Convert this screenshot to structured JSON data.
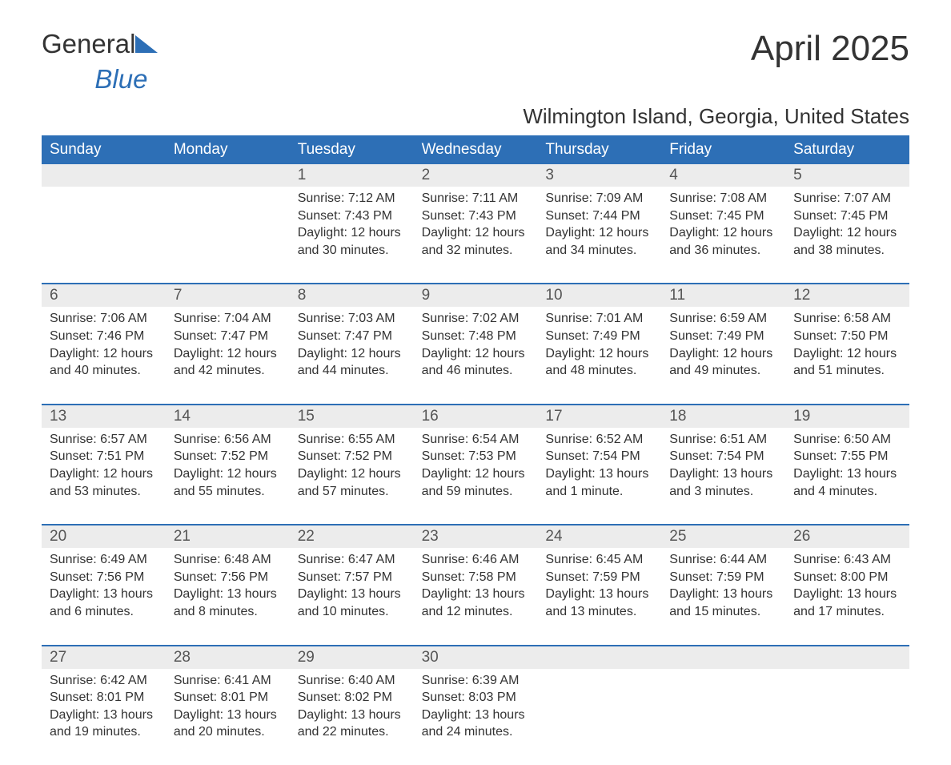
{
  "brand": {
    "name1": "General",
    "name2": "Blue"
  },
  "title": "April 2025",
  "subtitle": "Wilmington Island, Georgia, United States",
  "colors": {
    "header_bg": "#2d6fb6",
    "header_fg": "#ffffff",
    "daynum_bg": "#ececec",
    "body_bg": "#ffffff",
    "text": "#333333",
    "rule": "#2d6fb6"
  },
  "type": "calendar-table",
  "columns": [
    "Sunday",
    "Monday",
    "Tuesday",
    "Wednesday",
    "Thursday",
    "Friday",
    "Saturday"
  ],
  "weeks": [
    {
      "nums": [
        "",
        "",
        "1",
        "2",
        "3",
        "4",
        "5"
      ],
      "cells": [
        null,
        null,
        {
          "sunrise": "Sunrise: 7:12 AM",
          "sunset": "Sunset: 7:43 PM",
          "day1": "Daylight: 12 hours",
          "day2": "and 30 minutes."
        },
        {
          "sunrise": "Sunrise: 7:11 AM",
          "sunset": "Sunset: 7:43 PM",
          "day1": "Daylight: 12 hours",
          "day2": "and 32 minutes."
        },
        {
          "sunrise": "Sunrise: 7:09 AM",
          "sunset": "Sunset: 7:44 PM",
          "day1": "Daylight: 12 hours",
          "day2": "and 34 minutes."
        },
        {
          "sunrise": "Sunrise: 7:08 AM",
          "sunset": "Sunset: 7:45 PM",
          "day1": "Daylight: 12 hours",
          "day2": "and 36 minutes."
        },
        {
          "sunrise": "Sunrise: 7:07 AM",
          "sunset": "Sunset: 7:45 PM",
          "day1": "Daylight: 12 hours",
          "day2": "and 38 minutes."
        }
      ]
    },
    {
      "nums": [
        "6",
        "7",
        "8",
        "9",
        "10",
        "11",
        "12"
      ],
      "cells": [
        {
          "sunrise": "Sunrise: 7:06 AM",
          "sunset": "Sunset: 7:46 PM",
          "day1": "Daylight: 12 hours",
          "day2": "and 40 minutes."
        },
        {
          "sunrise": "Sunrise: 7:04 AM",
          "sunset": "Sunset: 7:47 PM",
          "day1": "Daylight: 12 hours",
          "day2": "and 42 minutes."
        },
        {
          "sunrise": "Sunrise: 7:03 AM",
          "sunset": "Sunset: 7:47 PM",
          "day1": "Daylight: 12 hours",
          "day2": "and 44 minutes."
        },
        {
          "sunrise": "Sunrise: 7:02 AM",
          "sunset": "Sunset: 7:48 PM",
          "day1": "Daylight: 12 hours",
          "day2": "and 46 minutes."
        },
        {
          "sunrise": "Sunrise: 7:01 AM",
          "sunset": "Sunset: 7:49 PM",
          "day1": "Daylight: 12 hours",
          "day2": "and 48 minutes."
        },
        {
          "sunrise": "Sunrise: 6:59 AM",
          "sunset": "Sunset: 7:49 PM",
          "day1": "Daylight: 12 hours",
          "day2": "and 49 minutes."
        },
        {
          "sunrise": "Sunrise: 6:58 AM",
          "sunset": "Sunset: 7:50 PM",
          "day1": "Daylight: 12 hours",
          "day2": "and 51 minutes."
        }
      ]
    },
    {
      "nums": [
        "13",
        "14",
        "15",
        "16",
        "17",
        "18",
        "19"
      ],
      "cells": [
        {
          "sunrise": "Sunrise: 6:57 AM",
          "sunset": "Sunset: 7:51 PM",
          "day1": "Daylight: 12 hours",
          "day2": "and 53 minutes."
        },
        {
          "sunrise": "Sunrise: 6:56 AM",
          "sunset": "Sunset: 7:52 PM",
          "day1": "Daylight: 12 hours",
          "day2": "and 55 minutes."
        },
        {
          "sunrise": "Sunrise: 6:55 AM",
          "sunset": "Sunset: 7:52 PM",
          "day1": "Daylight: 12 hours",
          "day2": "and 57 minutes."
        },
        {
          "sunrise": "Sunrise: 6:54 AM",
          "sunset": "Sunset: 7:53 PM",
          "day1": "Daylight: 12 hours",
          "day2": "and 59 minutes."
        },
        {
          "sunrise": "Sunrise: 6:52 AM",
          "sunset": "Sunset: 7:54 PM",
          "day1": "Daylight: 13 hours",
          "day2": "and 1 minute."
        },
        {
          "sunrise": "Sunrise: 6:51 AM",
          "sunset": "Sunset: 7:54 PM",
          "day1": "Daylight: 13 hours",
          "day2": "and 3 minutes."
        },
        {
          "sunrise": "Sunrise: 6:50 AM",
          "sunset": "Sunset: 7:55 PM",
          "day1": "Daylight: 13 hours",
          "day2": "and 4 minutes."
        }
      ]
    },
    {
      "nums": [
        "20",
        "21",
        "22",
        "23",
        "24",
        "25",
        "26"
      ],
      "cells": [
        {
          "sunrise": "Sunrise: 6:49 AM",
          "sunset": "Sunset: 7:56 PM",
          "day1": "Daylight: 13 hours",
          "day2": "and 6 minutes."
        },
        {
          "sunrise": "Sunrise: 6:48 AM",
          "sunset": "Sunset: 7:56 PM",
          "day1": "Daylight: 13 hours",
          "day2": "and 8 minutes."
        },
        {
          "sunrise": "Sunrise: 6:47 AM",
          "sunset": "Sunset: 7:57 PM",
          "day1": "Daylight: 13 hours",
          "day2": "and 10 minutes."
        },
        {
          "sunrise": "Sunrise: 6:46 AM",
          "sunset": "Sunset: 7:58 PM",
          "day1": "Daylight: 13 hours",
          "day2": "and 12 minutes."
        },
        {
          "sunrise": "Sunrise: 6:45 AM",
          "sunset": "Sunset: 7:59 PM",
          "day1": "Daylight: 13 hours",
          "day2": "and 13 minutes."
        },
        {
          "sunrise": "Sunrise: 6:44 AM",
          "sunset": "Sunset: 7:59 PM",
          "day1": "Daylight: 13 hours",
          "day2": "and 15 minutes."
        },
        {
          "sunrise": "Sunrise: 6:43 AM",
          "sunset": "Sunset: 8:00 PM",
          "day1": "Daylight: 13 hours",
          "day2": "and 17 minutes."
        }
      ]
    },
    {
      "nums": [
        "27",
        "28",
        "29",
        "30",
        "",
        "",
        ""
      ],
      "cells": [
        {
          "sunrise": "Sunrise: 6:42 AM",
          "sunset": "Sunset: 8:01 PM",
          "day1": "Daylight: 13 hours",
          "day2": "and 19 minutes."
        },
        {
          "sunrise": "Sunrise: 6:41 AM",
          "sunset": "Sunset: 8:01 PM",
          "day1": "Daylight: 13 hours",
          "day2": "and 20 minutes."
        },
        {
          "sunrise": "Sunrise: 6:40 AM",
          "sunset": "Sunset: 8:02 PM",
          "day1": "Daylight: 13 hours",
          "day2": "and 22 minutes."
        },
        {
          "sunrise": "Sunrise: 6:39 AM",
          "sunset": "Sunset: 8:03 PM",
          "day1": "Daylight: 13 hours",
          "day2": "and 24 minutes."
        },
        null,
        null,
        null
      ]
    }
  ]
}
